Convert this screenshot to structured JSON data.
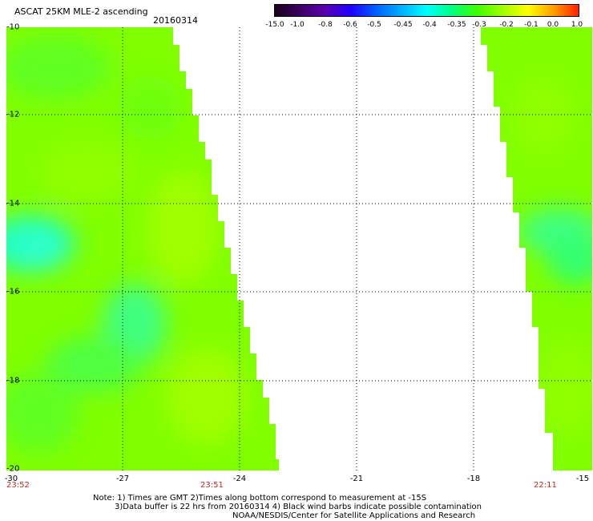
{
  "header": {
    "title": "ASCAT 25KM MLE-2 ascending",
    "date": "20160314"
  },
  "colorbar": {
    "labels": [
      "-15.0",
      "-1.0",
      "-0.8",
      "-0.6",
      "-0.5",
      "-0.45",
      "-0.4",
      "-0.35",
      "-0.3",
      "-0.2",
      "-0.1",
      "0.0",
      "1.0"
    ],
    "colors": [
      "#1a001a",
      "#3a0060",
      "#5c00b0",
      "#2000ff",
      "#0060ff",
      "#00b0ff",
      "#00ffff",
      "#00ff80",
      "#40ff00",
      "#a0ff00",
      "#ffff00",
      "#ffa000",
      "#ff2000"
    ]
  },
  "map": {
    "lat_ticks": [
      "-10",
      "-12",
      "-14",
      "-16",
      "-18",
      "-20"
    ],
    "lon_ticks": [
      "-30",
      "-27",
      "-24",
      "-21",
      "-18",
      "-15"
    ],
    "times": [
      "23:52",
      "23:51",
      "22:11"
    ],
    "swath_colors": {
      "base": "#80ff00",
      "light": "#a0ff00",
      "mid": "#60ff20",
      "cyan": "#40ff80",
      "teal": "#20ffc0"
    }
  },
  "notes": {
    "line1": "Note: 1) Times are GMT 2)Times along bottom correspond to measurement at -15S",
    "line2": "3)Data buffer is 22 hrs from 20160314 4) Black wind barbs indicate possible contamination",
    "line3": "NOAA/NESDIS/Center for Satellite Applications and Research"
  }
}
